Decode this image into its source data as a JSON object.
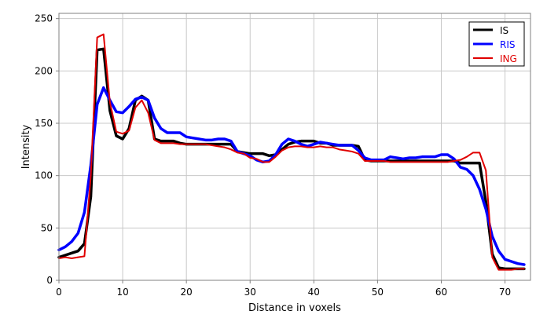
{
  "chart_data": {
    "type": "line",
    "title": "",
    "xlabel": "Distance in voxels",
    "ylabel": "Intensity",
    "xlim": [
      0,
      74
    ],
    "ylim": [
      0,
      255
    ],
    "xticks": [
      0,
      10,
      20,
      30,
      40,
      50,
      60,
      70
    ],
    "yticks": [
      0,
      50,
      100,
      150,
      200,
      250
    ],
    "grid": true,
    "legend": "top-right",
    "x": [
      0,
      1,
      2,
      3,
      4,
      5,
      6,
      7,
      8,
      9,
      10,
      11,
      12,
      13,
      14,
      15,
      16,
      17,
      18,
      19,
      20,
      21,
      22,
      23,
      24,
      25,
      26,
      27,
      28,
      29,
      30,
      31,
      32,
      33,
      34,
      35,
      36,
      37,
      38,
      39,
      40,
      41,
      42,
      43,
      44,
      45,
      46,
      47,
      48,
      49,
      50,
      51,
      52,
      53,
      54,
      55,
      56,
      57,
      58,
      59,
      60,
      61,
      62,
      63,
      64,
      65,
      66,
      67,
      68,
      69,
      70,
      71,
      72,
      73
    ],
    "series": [
      {
        "name": "IS",
        "color": "#000000",
        "values": [
          22,
          24,
          26,
          28,
          35,
          80,
          220,
          221,
          162,
          138,
          135,
          145,
          172,
          176,
          172,
          135,
          133,
          133,
          133,
          131,
          130,
          130,
          130,
          130,
          130,
          130,
          130,
          130,
          123,
          122,
          121,
          121,
          121,
          119,
          120,
          125,
          130,
          132,
          133,
          133,
          133,
          131,
          131,
          129,
          129,
          129,
          129,
          128,
          115,
          114,
          114,
          114,
          114,
          114,
          114,
          114,
          114,
          114,
          114,
          114,
          114,
          114,
          114,
          112,
          112,
          112,
          112,
          75,
          25,
          12,
          11,
          11,
          11,
          11
        ],
        "style": "thick"
      },
      {
        "name": "RIS",
        "color": "#0000ff",
        "values": [
          29,
          32,
          37,
          45,
          65,
          110,
          168,
          184,
          172,
          161,
          160,
          166,
          173,
          175,
          172,
          155,
          145,
          141,
          141,
          141,
          137,
          136,
          135,
          134,
          134,
          135,
          135,
          133,
          123,
          121,
          119,
          115,
          113,
          114,
          120,
          130,
          135,
          133,
          130,
          128,
          130,
          132,
          131,
          130,
          129,
          129,
          129,
          124,
          117,
          115,
          115,
          115,
          118,
          117,
          116,
          117,
          117,
          118,
          118,
          118,
          120,
          120,
          116,
          108,
          106,
          100,
          87,
          68,
          42,
          28,
          20,
          18,
          16,
          15
        ],
        "style": "thick"
      },
      {
        "name": "ING",
        "color": "#e00000",
        "values": [
          21,
          22,
          21,
          22,
          23,
          100,
          232,
          235,
          170,
          142,
          140,
          143,
          165,
          172,
          160,
          134,
          131,
          131,
          131,
          130,
          130,
          130,
          130,
          130,
          129,
          128,
          127,
          125,
          122,
          121,
          117,
          116,
          113,
          113,
          118,
          124,
          127,
          128,
          128,
          127,
          127,
          128,
          127,
          127,
          125,
          124,
          123,
          121,
          114,
          114,
          114,
          114,
          113,
          113,
          113,
          113,
          113,
          113,
          113,
          113,
          113,
          113,
          114,
          115,
          118,
          122,
          122,
          105,
          22,
          10,
          10,
          10,
          11,
          11
        ],
        "style": "thin"
      }
    ]
  }
}
